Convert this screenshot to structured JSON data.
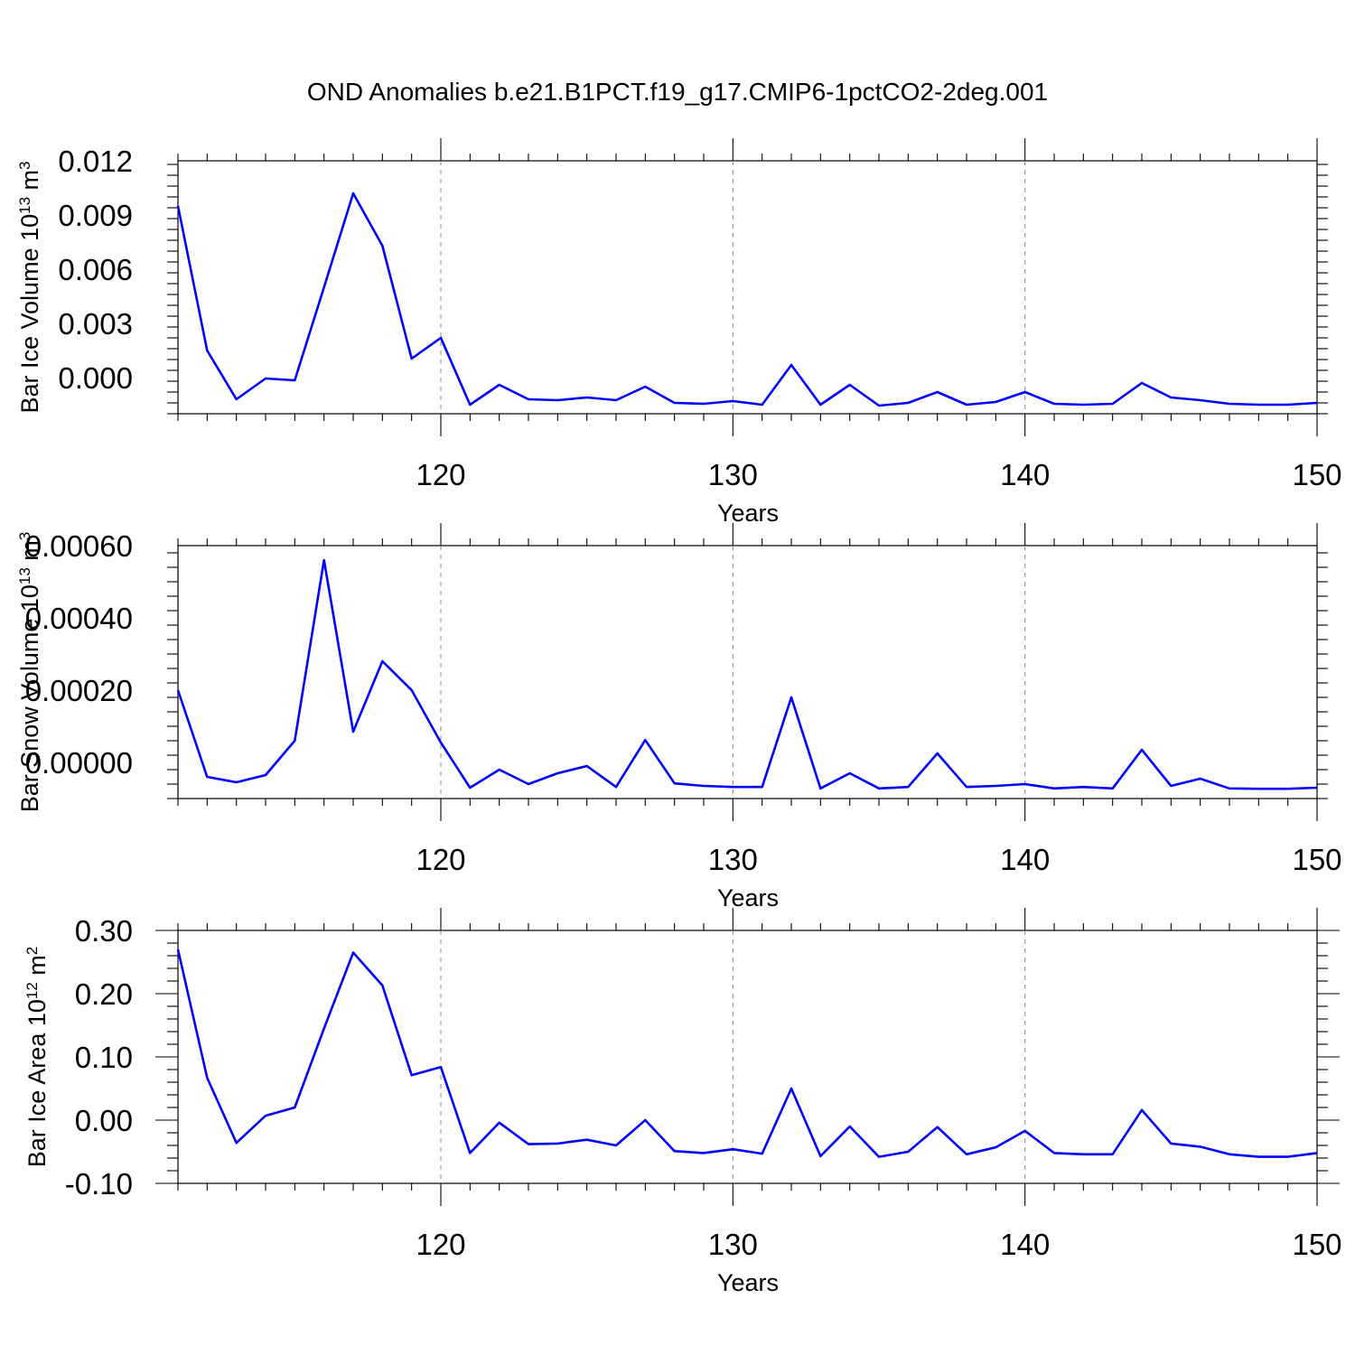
{
  "title": "OND Anomalies b.e21.B1PCT.f19_g17.CMIP6-1pctCO2-2deg.001",
  "colors": {
    "line": "#0000ff",
    "axis": "#000000",
    "grid": "#999999"
  },
  "chart_data": [
    {
      "type": "line",
      "ylabel": {
        "text": "Bar Ice Volume 10",
        "sup": "13",
        "unit": " m",
        "unit_sup": "3"
      },
      "xlabel": "Years",
      "xlim": [
        111,
        150
      ],
      "ylim": [
        -0.002,
        0.012
      ],
      "yticks": [
        0.0,
        0.003,
        0.006,
        0.009,
        0.012
      ],
      "ytick_labels": [
        "0.000",
        "0.003",
        "0.006",
        "0.009",
        "0.012"
      ],
      "xticks": [
        120,
        130,
        140,
        150
      ],
      "xtick_labels": [
        "120",
        "130",
        "140",
        "150"
      ],
      "grid_x": [
        120,
        130,
        140
      ],
      "series": [
        {
          "x": [
            111,
            112,
            113,
            114,
            115,
            116,
            117,
            118,
            119,
            120,
            121,
            122,
            123,
            124,
            125,
            126,
            127,
            128,
            129,
            130,
            131,
            132,
            133,
            134,
            135,
            136,
            137,
            138,
            139,
            140,
            141,
            142,
            143,
            144,
            145,
            146,
            147,
            148,
            149,
            150
          ],
          "y": [
            0.0095,
            0.0015,
            -0.0012,
            -5e-05,
            -0.00015,
            0.005,
            0.0102,
            0.0073,
            0.00105,
            0.0022,
            -0.0015,
            -0.0004,
            -0.0012,
            -0.00125,
            -0.0011,
            -0.00125,
            -0.0005,
            -0.0014,
            -0.00145,
            -0.0013,
            -0.0015,
            0.0007,
            -0.0015,
            -0.0004,
            -0.00155,
            -0.0014,
            -0.0008,
            -0.0015,
            -0.00135,
            -0.0008,
            -0.00145,
            -0.0015,
            -0.00145,
            -0.0003,
            -0.0011,
            -0.00125,
            -0.00145,
            -0.0015,
            -0.0015,
            -0.0014
          ]
        }
      ]
    },
    {
      "type": "line",
      "ylabel": {
        "text": "Bar Snow Volume 10",
        "sup": "13",
        "unit": " m",
        "unit_sup": "3"
      },
      "xlabel": "Years",
      "xlim": [
        111,
        150
      ],
      "ylim": [
        -0.0001,
        0.0006
      ],
      "yticks": [
        0.0,
        0.0002,
        0.0004,
        0.0006
      ],
      "ytick_labels": [
        "0.00000",
        "0.00020",
        "0.00040",
        "0.00060"
      ],
      "xticks": [
        120,
        130,
        140,
        150
      ],
      "xtick_labels": [
        "120",
        "130",
        "140",
        "150"
      ],
      "grid_x": [
        120,
        130,
        140
      ],
      "series": [
        {
          "x": [
            111,
            112,
            113,
            114,
            115,
            116,
            117,
            118,
            119,
            120,
            121,
            122,
            123,
            124,
            125,
            126,
            127,
            128,
            129,
            130,
            131,
            132,
            133,
            134,
            135,
            136,
            137,
            138,
            139,
            140,
            141,
            142,
            143,
            144,
            145,
            146,
            147,
            148,
            149,
            150
          ],
          "y": [
            0.0002,
            -4e-05,
            -5.5e-05,
            -3.5e-05,
            6e-05,
            0.00056,
            8.5e-05,
            0.00028,
            0.0002,
            5.5e-05,
            -7e-05,
            -2e-05,
            -6e-05,
            -3e-05,
            -1e-05,
            -6.8e-05,
            6.2e-05,
            -5.8e-05,
            -6.5e-05,
            -6.8e-05,
            -6.8e-05,
            0.00018,
            -7.2e-05,
            -3e-05,
            -7.2e-05,
            -6.8e-05,
            2.5e-05,
            -6.8e-05,
            -6.5e-05,
            -6e-05,
            -7.2e-05,
            -6.8e-05,
            -7.2e-05,
            3.5e-05,
            -6.5e-05,
            -4.5e-05,
            -7.2e-05,
            -7.3e-05,
            -7.3e-05,
            -7e-05
          ]
        }
      ]
    },
    {
      "type": "line",
      "ylabel": {
        "text": "Bar Ice Area 10",
        "sup": "12",
        "unit": " m",
        "unit_sup": "2"
      },
      "xlabel": "Years",
      "xlim": [
        111,
        150
      ],
      "ylim": [
        -0.1,
        0.3
      ],
      "yticks": [
        -0.1,
        0.0,
        0.1,
        0.2,
        0.3
      ],
      "ytick_labels": [
        "-0.10",
        "0.00",
        "0.10",
        "0.20",
        "0.30"
      ],
      "xticks": [
        120,
        130,
        140,
        150
      ],
      "xtick_labels": [
        "120",
        "130",
        "140",
        "150"
      ],
      "grid_x": [
        120,
        130,
        140
      ],
      "series": [
        {
          "x": [
            111,
            112,
            113,
            114,
            115,
            116,
            117,
            118,
            119,
            120,
            121,
            122,
            123,
            124,
            125,
            126,
            127,
            128,
            129,
            130,
            131,
            132,
            133,
            134,
            135,
            136,
            137,
            138,
            139,
            140,
            141,
            142,
            143,
            144,
            145,
            146,
            147,
            148,
            149,
            150
          ],
          "y": [
            0.27,
            0.067,
            -0.036,
            0.007,
            0.02,
            0.145,
            0.265,
            0.213,
            0.071,
            0.084,
            -0.052,
            -0.004,
            -0.038,
            -0.037,
            -0.031,
            -0.04,
            0.0,
            -0.049,
            -0.052,
            -0.046,
            -0.053,
            0.05,
            -0.057,
            -0.01,
            -0.058,
            -0.05,
            -0.011,
            -0.054,
            -0.043,
            -0.017,
            -0.052,
            -0.054,
            -0.054,
            0.016,
            -0.037,
            -0.042,
            -0.054,
            -0.058,
            -0.058,
            -0.052
          ]
        }
      ]
    }
  ]
}
